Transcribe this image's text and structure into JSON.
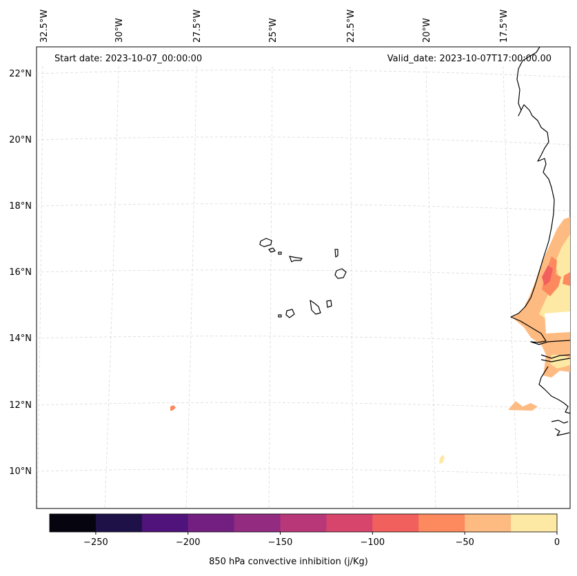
{
  "header": {
    "start_date": "Start date: 2023-10-07_00:00:00",
    "valid_date": "Valid_date: 2023-10-07T17:00:00.00"
  },
  "grid": {
    "longitude_labels": [
      "32.5°W",
      "30°W",
      "27.5°W",
      "25°W",
      "22.5°W",
      "20°W",
      "17.5°W"
    ],
    "latitude_labels": [
      "22°N",
      "20°N",
      "18°N",
      "16°N",
      "14°N",
      "12°N",
      "10°N"
    ]
  },
  "colorbar": {
    "title": "850 hPa convective inhibition (j/Kg)",
    "tick_labels": [
      "−250",
      "−200",
      "−150",
      "−100",
      "−50",
      "0"
    ],
    "range": [
      -275,
      0
    ],
    "colors": [
      "#05040f",
      "#1d1147",
      "#50127b",
      "#721f81",
      "#932b80",
      "#b73779",
      "#d8456c",
      "#f1605d",
      "#fd8a5e",
      "#febb81",
      "#fde9a4"
    ]
  },
  "styles": {
    "coastline_color": "#000000",
    "gridline_color": "#d9d9d9"
  }
}
